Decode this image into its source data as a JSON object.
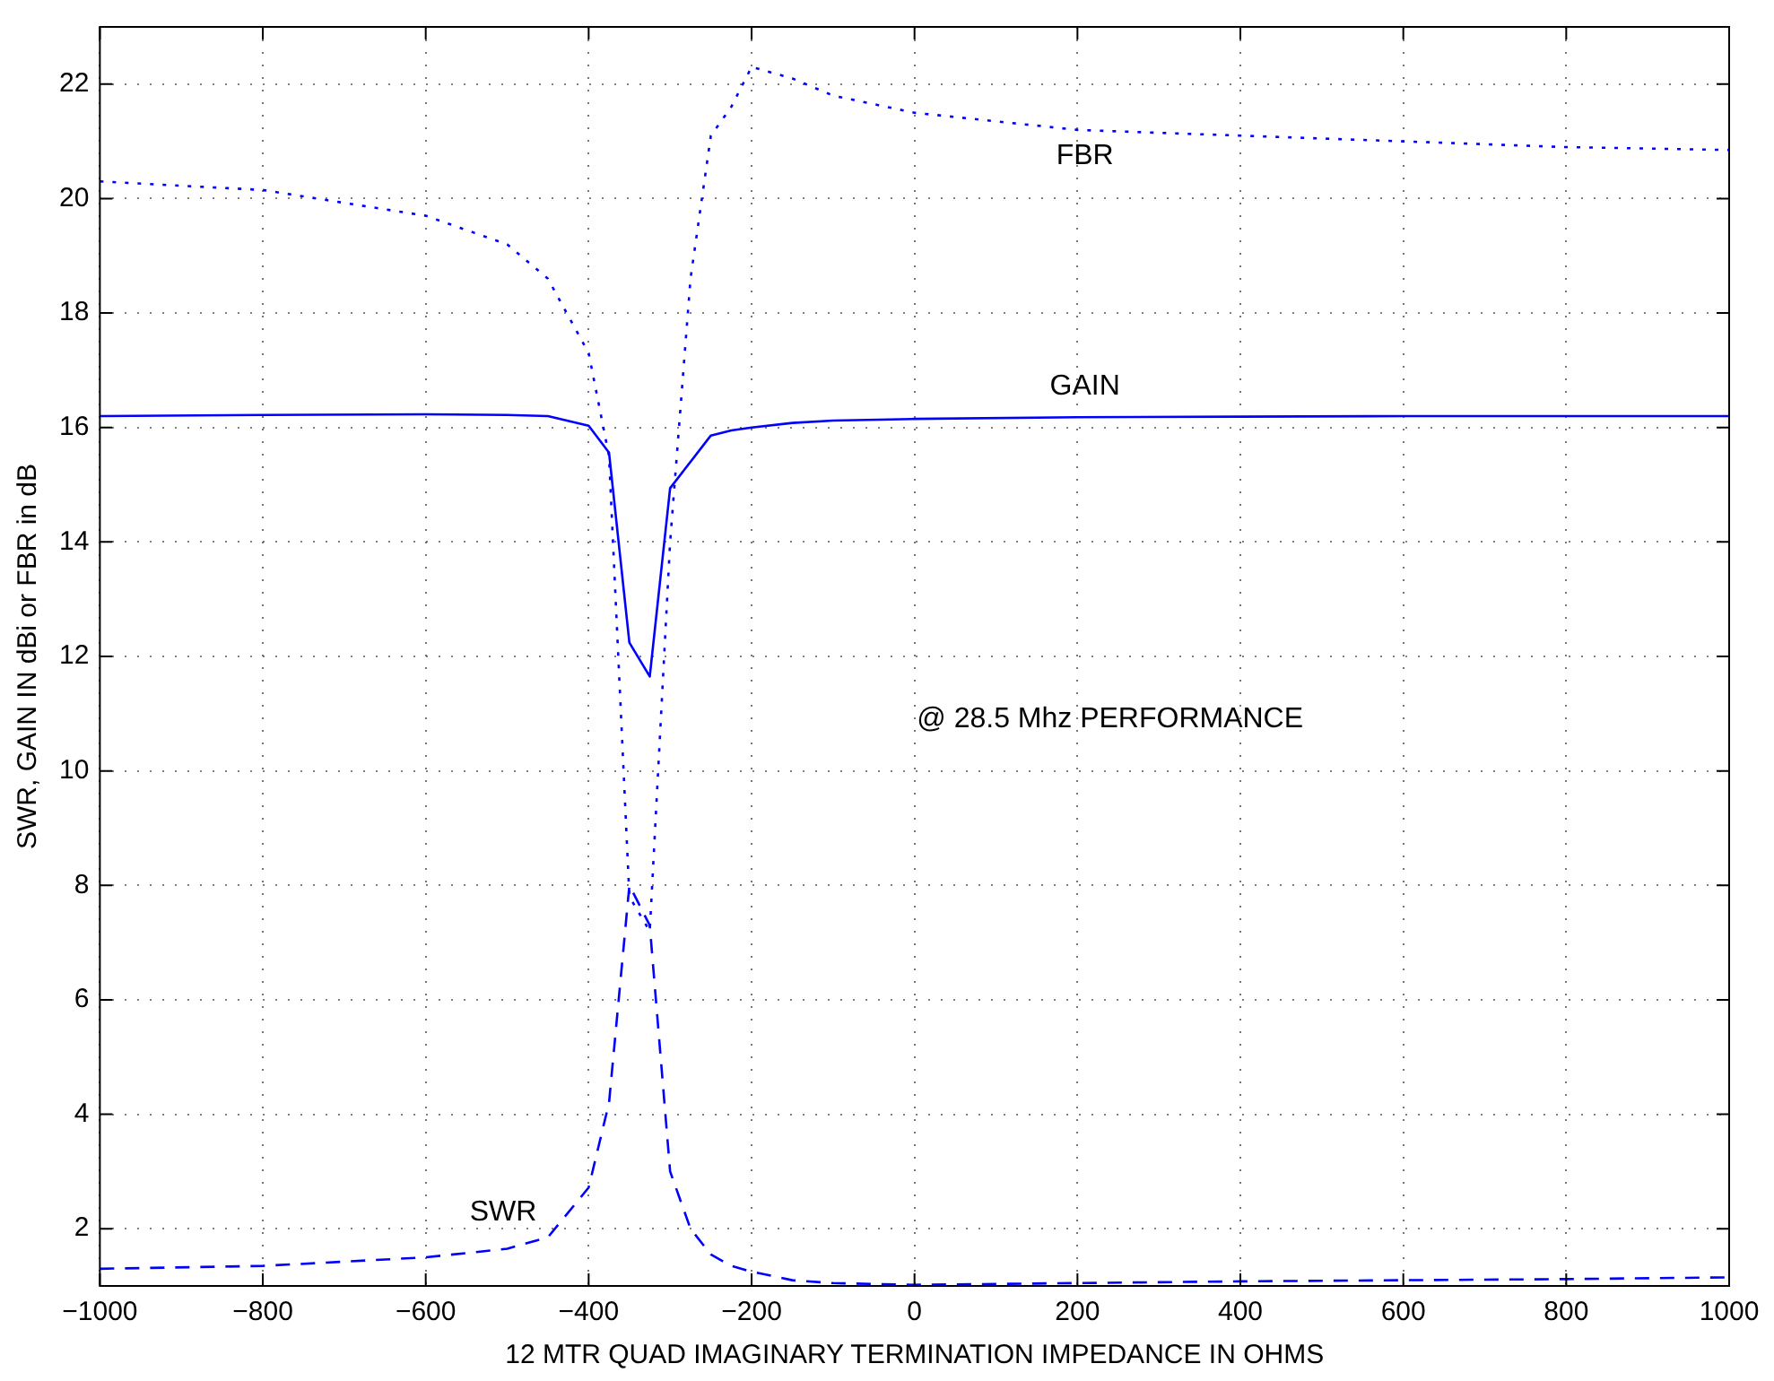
{
  "chart_data": {
    "type": "line",
    "xlabel": "12 MTR QUAD IMAGINARY TERMINATION IMPEDANCE IN OHMS",
    "ylabel": "SWR, GAIN IN dBi or FBR in dB",
    "x": [
      -1000,
      -800,
      -600,
      -500,
      -450,
      -400,
      -375,
      -350,
      -325,
      -300,
      -275,
      -250,
      -225,
      -200,
      -150,
      -100,
      0,
      200,
      400,
      600,
      800,
      1000
    ],
    "series": [
      {
        "name": "FBR",
        "color": "#0000ff",
        "line_style": "dotted",
        "values": [
          20.3,
          20.15,
          19.7,
          19.2,
          18.6,
          17.3,
          15.5,
          7.8,
          7.2,
          14,
          18.6,
          21.1,
          21.6,
          22.3,
          22.1,
          21.8,
          21.5,
          21.2,
          21.1,
          21.0,
          20.9,
          20.85
        ]
      },
      {
        "name": "GAIN",
        "color": "#0000ff",
        "line_style": "solid",
        "values": [
          16.2,
          16.22,
          16.23,
          16.22,
          16.2,
          16.03,
          15.56,
          12.24,
          11.65,
          14.94,
          15.4,
          15.86,
          15.95,
          16.0,
          16.08,
          16.12,
          16.15,
          16.18,
          16.19,
          16.2,
          16.2,
          16.2
        ]
      },
      {
        "name": "SWR",
        "color": "#0000ff",
        "line_style": "dashed",
        "values": [
          1.3,
          1.35,
          1.5,
          1.65,
          1.85,
          2.72,
          4.2,
          8.0,
          7.3,
          3.0,
          2.0,
          1.55,
          1.35,
          1.25,
          1.1,
          1.05,
          1.02,
          1.05,
          1.08,
          1.1,
          1.12,
          1.15
        ]
      }
    ],
    "xlim": [
      -1000,
      1000
    ],
    "xticks": [
      {
        "value": -1000,
        "label": "−1000"
      },
      {
        "value": -800,
        "label": "−800"
      },
      {
        "value": -600,
        "label": "−600"
      },
      {
        "value": -400,
        "label": "−400"
      },
      {
        "value": -200,
        "label": "−200"
      },
      0,
      200,
      400,
      600,
      800,
      1000
    ],
    "ylim": [
      1,
      23
    ],
    "yticks": [
      2,
      4,
      6,
      8,
      10,
      12,
      14,
      16,
      18,
      20,
      22
    ],
    "grid": true,
    "legend": false,
    "marker": "none",
    "annotations": [
      "@ 28.5 Mhz PERFORMANCE"
    ]
  }
}
